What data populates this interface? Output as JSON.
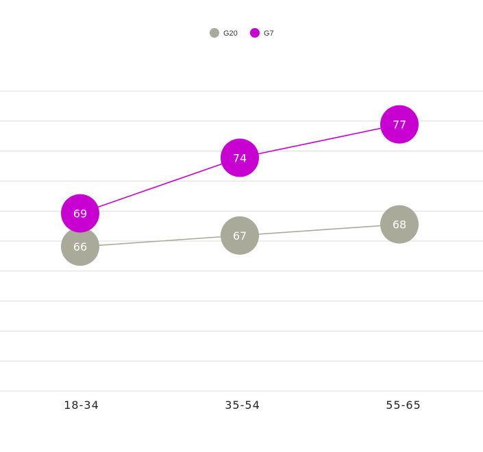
{
  "chart_data": {
    "type": "line",
    "categories": [
      "18-34",
      "35-54",
      "55-65"
    ],
    "series": [
      {
        "name": "G20",
        "values": [
          66,
          67,
          68
        ],
        "color": "#a9aa99"
      },
      {
        "name": "G7",
        "values": [
          69,
          74,
          77
        ],
        "color": "#c800d2"
      }
    ],
    "legend_position": "top-center",
    "grid": true,
    "ylim": [
      53,
      80
    ]
  }
}
